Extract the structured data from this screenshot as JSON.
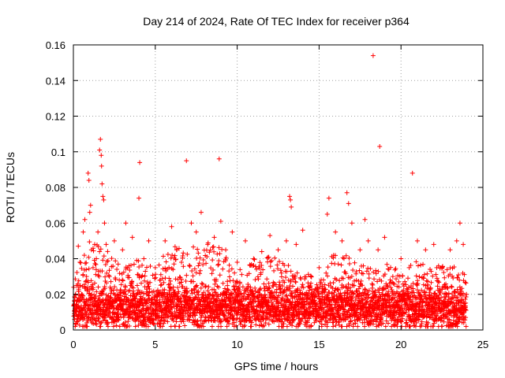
{
  "chart_data": {
    "type": "scatter",
    "title": "Day 214 of 2024, Rate Of TEC Index for receiver p364",
    "xlabel": "GPS time / hours",
    "ylabel": "ROTI / TECUs",
    "xlim": [
      0,
      25
    ],
    "ylim": [
      0,
      0.16
    ],
    "x_ticks": [
      "0",
      "5",
      "10",
      "15",
      "20",
      "25"
    ],
    "y_ticks": [
      "0",
      "0.02",
      "0.04",
      "0.06",
      "0.08",
      "0.1",
      "0.12",
      "0.14",
      "0.16"
    ],
    "grid": true,
    "marker": "+",
    "series": [
      {
        "name": "ROTI",
        "color": "#ff0000",
        "points": [
          [
            0.1,
            0.012
          ],
          [
            0.2,
            0.025
          ],
          [
            0.3,
            0.047
          ],
          [
            0.4,
            0.038
          ],
          [
            0.5,
            0.02
          ],
          [
            0.6,
            0.055
          ],
          [
            0.7,
            0.062
          ],
          [
            0.8,
            0.03
          ],
          [
            0.9,
            0.088
          ],
          [
            0.95,
            0.084
          ],
          [
            1.0,
            0.066
          ],
          [
            1.05,
            0.07
          ],
          [
            1.1,
            0.045
          ],
          [
            1.2,
            0.035
          ],
          [
            1.3,
            0.048
          ],
          [
            1.4,
            0.04
          ],
          [
            1.5,
            0.055
          ],
          [
            1.6,
            0.101
          ],
          [
            1.65,
            0.107
          ],
          [
            1.7,
            0.098
          ],
          [
            1.72,
            0.092
          ],
          [
            1.75,
            0.082
          ],
          [
            1.8,
            0.075
          ],
          [
            1.85,
            0.073
          ],
          [
            1.9,
            0.06
          ],
          [
            2.0,
            0.048
          ],
          [
            2.2,
            0.03
          ],
          [
            2.5,
            0.05
          ],
          [
            2.8,
            0.028
          ],
          [
            3.0,
            0.045
          ],
          [
            3.2,
            0.06
          ],
          [
            3.4,
            0.036
          ],
          [
            3.6,
            0.052
          ],
          [
            3.9,
            0.025
          ],
          [
            4.0,
            0.074
          ],
          [
            4.05,
            0.094
          ],
          [
            4.3,
            0.04
          ],
          [
            4.6,
            0.05
          ],
          [
            5.0,
            0.035
          ],
          [
            5.3,
            0.028
          ],
          [
            5.6,
            0.05
          ],
          [
            6.0,
            0.058
          ],
          [
            6.3,
            0.045
          ],
          [
            6.6,
            0.038
          ],
          [
            6.9,
            0.095
          ],
          [
            7.2,
            0.06
          ],
          [
            7.5,
            0.055
          ],
          [
            7.8,
            0.066
          ],
          [
            8.2,
            0.048
          ],
          [
            8.6,
            0.052
          ],
          [
            8.9,
            0.096
          ],
          [
            9.0,
            0.061
          ],
          [
            9.3,
            0.045
          ],
          [
            9.7,
            0.055
          ],
          [
            10.0,
            0.038
          ],
          [
            10.5,
            0.05
          ],
          [
            11.0,
            0.04
          ],
          [
            11.5,
            0.044
          ],
          [
            12.0,
            0.053
          ],
          [
            12.5,
            0.045
          ],
          [
            13.0,
            0.05
          ],
          [
            13.2,
            0.075
          ],
          [
            13.25,
            0.073
          ],
          [
            13.3,
            0.069
          ],
          [
            13.6,
            0.048
          ],
          [
            14.0,
            0.056
          ],
          [
            14.5,
            0.03
          ],
          [
            15.0,
            0.035
          ],
          [
            15.5,
            0.065
          ],
          [
            15.6,
            0.074
          ],
          [
            16.0,
            0.055
          ],
          [
            16.4,
            0.05
          ],
          [
            16.7,
            0.077
          ],
          [
            16.8,
            0.071
          ],
          [
            17.0,
            0.06
          ],
          [
            17.5,
            0.045
          ],
          [
            17.8,
            0.062
          ],
          [
            18.0,
            0.05
          ],
          [
            18.3,
            0.154
          ],
          [
            18.6,
            0.045
          ],
          [
            18.7,
            0.103
          ],
          [
            19.0,
            0.052
          ],
          [
            19.5,
            0.03
          ],
          [
            20.0,
            0.04
          ],
          [
            20.5,
            0.035
          ],
          [
            20.7,
            0.088
          ],
          [
            21.0,
            0.05
          ],
          [
            21.5,
            0.045
          ],
          [
            22.0,
            0.048
          ],
          [
            22.5,
            0.035
          ],
          [
            23.0,
            0.045
          ],
          [
            23.4,
            0.05
          ],
          [
            23.6,
            0.06
          ],
          [
            23.8,
            0.048
          ],
          [
            24.0,
            0.02
          ]
        ],
        "dense_band": {
          "baseline_mean": 0.013,
          "baseline_spread": 0.006,
          "x_step": 0.05,
          "envelope_upper": [
            [
              0,
              0.03
            ],
            [
              1,
              0.05
            ],
            [
              2,
              0.045
            ],
            [
              3,
              0.035
            ],
            [
              4,
              0.04
            ],
            [
              5,
              0.035
            ],
            [
              6,
              0.048
            ],
            [
              7,
              0.045
            ],
            [
              8,
              0.05
            ],
            [
              9,
              0.048
            ],
            [
              10,
              0.035
            ],
            [
              11,
              0.04
            ],
            [
              12,
              0.042
            ],
            [
              13,
              0.038
            ],
            [
              14,
              0.032
            ],
            [
              15,
              0.03
            ],
            [
              16,
              0.045
            ],
            [
              17,
              0.04
            ],
            [
              18,
              0.035
            ],
            [
              19,
              0.04
            ],
            [
              20,
              0.032
            ],
            [
              21,
              0.04
            ],
            [
              22,
              0.035
            ],
            [
              23,
              0.04
            ],
            [
              24,
              0.03
            ]
          ]
        }
      }
    ]
  }
}
